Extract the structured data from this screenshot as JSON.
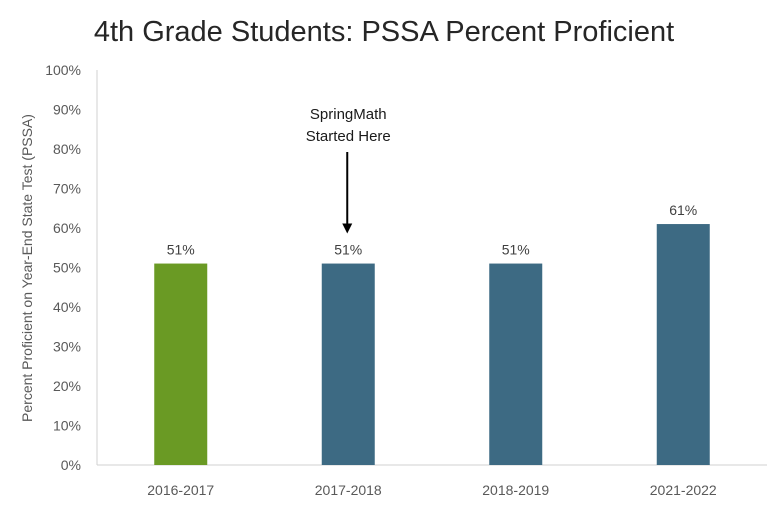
{
  "chart_data": {
    "type": "bar",
    "title": "4th Grade Students: PSSA Percent Proficient",
    "xlabel": "",
    "ylabel": "Percent Proficient on Year-End State Test (PSSA)",
    "categories": [
      "2016-2017",
      "2017-2018",
      "2018-2019",
      "2021-2022"
    ],
    "values": [
      51,
      51,
      51,
      61
    ],
    "data_labels": [
      "51%",
      "51%",
      "51%",
      "61%"
    ],
    "bar_colors": [
      "#6a9a24",
      "#3d6a83",
      "#3d6a83",
      "#3d6a83"
    ],
    "ylim": [
      0,
      100
    ],
    "yticks": [
      0,
      10,
      20,
      30,
      40,
      50,
      60,
      70,
      80,
      90,
      100
    ],
    "ytick_labels": [
      "0%",
      "10%",
      "20%",
      "30%",
      "40%",
      "50%",
      "60%",
      "70%",
      "80%",
      "90%",
      "100%"
    ],
    "grid": false,
    "legend": "none",
    "annotation": {
      "lines": [
        "SpringMath",
        "Started Here"
      ],
      "category": "2017-2018"
    }
  }
}
